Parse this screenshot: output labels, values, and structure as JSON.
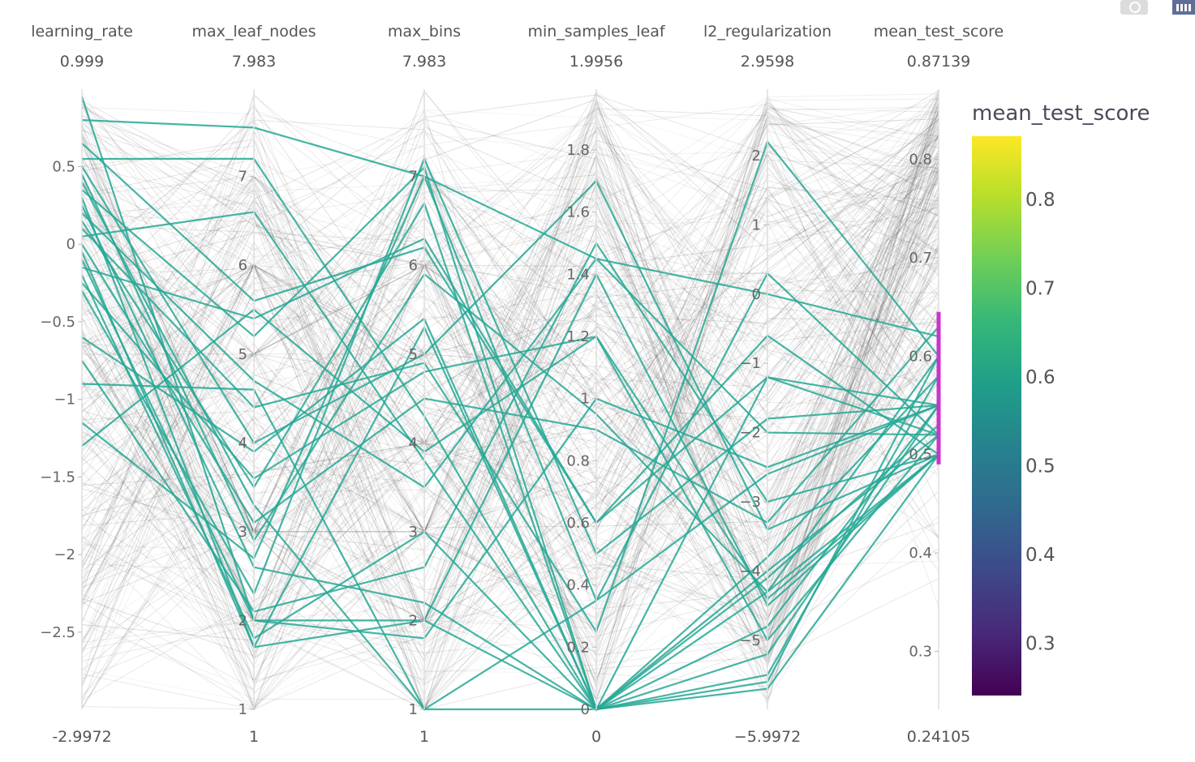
{
  "chart_data": {
    "type": "parallel_coordinates",
    "dimensions": [
      {
        "name": "learning_rate",
        "range": [
          -2.9972,
          0.999
        ],
        "range_labels": [
          "-2.9972",
          "0.999"
        ],
        "ticks": [
          -2.5,
          -2,
          -1.5,
          -1,
          -0.5,
          0,
          0.5
        ],
        "tick_labels": [
          "−2.5",
          "−2",
          "−1.5",
          "−1",
          "−0.5",
          "0",
          "0.5"
        ],
        "tick_side": "left"
      },
      {
        "name": "max_leaf_nodes",
        "range": [
          1,
          7.983
        ],
        "range_labels": [
          "1",
          "7.983"
        ],
        "ticks": [
          1,
          2,
          3,
          4,
          5,
          6,
          7
        ],
        "tick_labels": [
          "1",
          "2",
          "3",
          "4",
          "5",
          "6",
          "7"
        ],
        "tick_side": "left"
      },
      {
        "name": "max_bins",
        "range": [
          1,
          7.983
        ],
        "range_labels": [
          "1",
          "7.983"
        ],
        "ticks": [
          1,
          2,
          3,
          4,
          5,
          6,
          7
        ],
        "tick_labels": [
          "1",
          "2",
          "3",
          "4",
          "5",
          "6",
          "7"
        ],
        "tick_side": "left"
      },
      {
        "name": "min_samples_leaf",
        "range": [
          0,
          1.9956
        ],
        "range_labels": [
          "0",
          "1.9956"
        ],
        "ticks": [
          0,
          0.2,
          0.4,
          0.6,
          0.8,
          1,
          1.2,
          1.4,
          1.6,
          1.8
        ],
        "tick_labels": [
          "0",
          "0.2",
          "0.4",
          "0.6",
          "0.8",
          "1",
          "1.2",
          "1.4",
          "1.6",
          "1.8"
        ],
        "tick_side": "left"
      },
      {
        "name": "l2_regularization",
        "range": [
          -5.9972,
          2.9598
        ],
        "range_labels": [
          "−5.9972",
          "2.9598"
        ],
        "ticks": [
          -5,
          -4,
          -3,
          -2,
          -1,
          0,
          1,
          2
        ],
        "tick_labels": [
          "−5",
          "−4",
          "−3",
          "−2",
          "−1",
          "0",
          "1",
          "2"
        ],
        "tick_side": "left"
      },
      {
        "name": "mean_test_score",
        "range": [
          0.24105,
          0.87139
        ],
        "range_labels": [
          "0.24105",
          "0.87139"
        ],
        "ticks": [
          0.3,
          0.4,
          0.5,
          0.6,
          0.7,
          0.8
        ],
        "tick_labels": [
          "0.3",
          "0.4",
          "0.5",
          "0.6",
          "0.7",
          "0.8"
        ],
        "tick_side": "left",
        "constraint_range": [
          0.49,
          0.645
        ]
      }
    ],
    "highlighted_lines": [
      [
        0.95,
        2.0,
        2.0,
        0.0,
        -5.7,
        0.5
      ],
      [
        0.8,
        7.55,
        7.0,
        1.45,
        0.0,
        0.62
      ],
      [
        0.65,
        5.6,
        6.2,
        0.6,
        -1.2,
        0.52
      ],
      [
        0.55,
        7.2,
        4.3,
        0.0,
        -4.8,
        0.55
      ],
      [
        0.5,
        4.0,
        5.0,
        1.7,
        -3.4,
        0.5
      ],
      [
        0.45,
        2.9,
        5.9,
        0.95,
        -4.3,
        0.6
      ],
      [
        0.4,
        3.3,
        1.0,
        0.35,
        0.3,
        0.52
      ],
      [
        0.35,
        5.2,
        7.1,
        0.0,
        -1.2,
        0.55
      ],
      [
        0.3,
        1.7,
        2.0,
        1.4,
        -4.5,
        0.5
      ],
      [
        0.25,
        2.6,
        2.2,
        0.0,
        -5.5,
        0.58
      ],
      [
        0.2,
        4.7,
        3.5,
        1.45,
        -2.0,
        0.52
      ],
      [
        0.15,
        3.5,
        6.7,
        0.0,
        -5.2,
        0.55
      ],
      [
        0.1,
        4.4,
        4.9,
        0.25,
        2.2,
        0.6
      ],
      [
        0.05,
        6.6,
        3.8,
        0.0,
        -4.3,
        0.5
      ],
      [
        0.0,
        3.1,
        4.5,
        0.9,
        -3.3,
        0.63
      ],
      [
        -0.05,
        1.7,
        5.3,
        0.0,
        -4.0,
        0.52
      ],
      [
        -0.1,
        2.0,
        1.8,
        1.0,
        -2.5,
        0.55
      ],
      [
        -0.15,
        5.4,
        6.3,
        0.6,
        -0.6,
        0.5
      ],
      [
        -0.2,
        1.8,
        3.0,
        0.0,
        -3.8,
        0.58
      ],
      [
        -0.25,
        3.6,
        4.8,
        1.2,
        -5.0,
        0.52
      ],
      [
        -0.3,
        2.3,
        7.2,
        0.5,
        -1.8,
        0.55
      ],
      [
        -0.6,
        3.9,
        5.4,
        0.0,
        -5.6,
        0.6
      ],
      [
        -0.75,
        2.1,
        2.6,
        1.5,
        -3.0,
        0.5
      ],
      [
        -0.9,
        4.6,
        1.0,
        0.0,
        -4.1,
        0.53
      ],
      [
        -1.15,
        2.7,
        7.0,
        0.35,
        -2.6,
        0.55
      ],
      [
        -1.3,
        5.5,
        3.9,
        1.2,
        -4.4,
        0.5
      ]
    ]
  },
  "colorbar": {
    "title": "mean_test_score",
    "range": [
      0.24105,
      0.87139
    ],
    "ticks": [
      "0.3",
      "0.4",
      "0.5",
      "0.6",
      "0.7",
      "0.8"
    ],
    "colors": [
      "#440154",
      "#482878",
      "#3e4989",
      "#31688e",
      "#26828e",
      "#1f9e89",
      "#35b779",
      "#6ece58",
      "#b5de2b",
      "#fde725"
    ]
  },
  "colors": {
    "background_line": "#444444",
    "highlight_line": "#24a895",
    "axis": "#dddddd",
    "constraint": "#cc33cc"
  },
  "modebar": {
    "camera_icon": "camera-icon",
    "plotly_icon": "plotly-logo-icon"
  }
}
